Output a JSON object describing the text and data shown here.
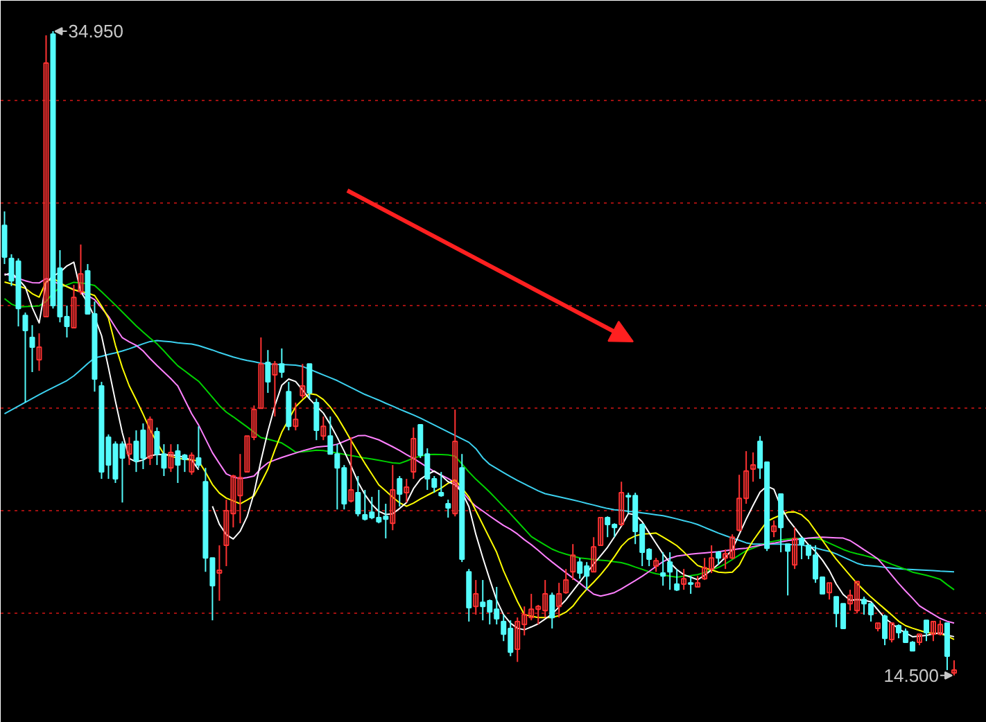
{
  "chart_data": {
    "type": "candlestick",
    "annotations": [
      "34.950",
      "14.500"
    ],
    "categories": [
      null,
      null,
      null,
      null,
      null,
      null,
      null,
      null,
      null,
      null,
      null,
      null,
      null,
      null,
      null,
      null,
      null,
      null,
      null,
      null,
      null,
      null,
      null,
      null,
      null,
      null,
      null,
      null,
      null,
      null,
      null,
      null,
      null,
      null,
      null,
      null,
      null,
      null,
      null,
      null,
      null,
      null,
      null,
      null,
      null,
      null,
      null,
      null,
      null,
      null,
      null,
      null,
      null,
      null,
      null,
      null,
      null,
      null,
      null,
      null,
      null,
      null,
      null,
      null,
      null,
      null,
      null,
      null,
      null,
      null,
      null,
      null,
      null,
      null,
      null,
      null,
      null,
      null,
      null,
      null,
      null,
      null,
      null,
      null,
      null,
      null,
      null,
      null,
      null,
      null,
      null,
      null,
      null,
      null,
      null,
      null,
      null,
      null,
      null,
      null,
      null,
      null,
      null,
      null,
      null,
      null,
      null,
      null,
      null,
      null,
      null,
      null,
      null,
      null,
      null,
      null,
      null,
      null,
      null,
      null,
      null,
      null,
      null,
      null,
      null,
      null,
      null,
      null,
      null,
      null,
      null,
      null,
      null,
      null,
      null,
      null,
      null,
      null
    ],
    "ohlc": [
      [
        28.79,
        29.23,
        27.56,
        27.78
      ],
      [
        27.74,
        27.87,
        26.86,
        27.03
      ],
      [
        27.65,
        27.74,
        25.58,
        26.15
      ],
      [
        25.93,
        26.02,
        23.16,
        25.45
      ],
      [
        25.23,
        25.62,
        24.13,
        24.92
      ],
      [
        24.52,
        25.36,
        24.17,
        24.92
      ],
      [
        25.89,
        34.82,
        25.89,
        33.94
      ],
      [
        34.86,
        34.95,
        26.15,
        26.24
      ],
      [
        27.43,
        28.0,
        25.71,
        25.89
      ],
      [
        25.89,
        26.24,
        25.23,
        25.58
      ],
      [
        25.54,
        26.9,
        25.54,
        26.5
      ],
      [
        26.68,
        28.18,
        26.59,
        27.25
      ],
      [
        27.34,
        27.56,
        25.98,
        25.98
      ],
      [
        25.98,
        26.37,
        23.51,
        23.91
      ],
      [
        23.69,
        23.82,
        20.74,
        20.96
      ],
      [
        22.06,
        22.15,
        20.74,
        21.18
      ],
      [
        21.84,
        21.93,
        20.61,
        20.74
      ],
      [
        21.84,
        21.93,
        19.99,
        21.4
      ],
      [
        21.53,
        22.06,
        21.18,
        21.84
      ],
      [
        21.93,
        22.28,
        20.96,
        21.31
      ],
      [
        22.28,
        22.5,
        21.05,
        21.4
      ],
      [
        21.4,
        22.72,
        21.18,
        22.63
      ],
      [
        22.24,
        22.37,
        21.18,
        21.53
      ],
      [
        21.53,
        21.84,
        20.83,
        21.09
      ],
      [
        21.09,
        21.84,
        20.96,
        21.58
      ],
      [
        21.62,
        21.84,
        20.61,
        21.18
      ],
      [
        21.49,
        21.53,
        20.96,
        21.36
      ],
      [
        20.96,
        21.58,
        20.87,
        21.49
      ],
      [
        21.4,
        22.41,
        21.09,
        21.18
      ],
      [
        20.65,
        21.09,
        17.79,
        18.23
      ],
      [
        18.23,
        18.23,
        16.25,
        17.35
      ],
      [
        17.75,
        18.63,
        16.87,
        17.84
      ],
      [
        18.63,
        20.08,
        17.97,
        19.73
      ],
      [
        19.64,
        20.87,
        19.2,
        20.83
      ],
      [
        20.21,
        21.53,
        19.33,
        20.78
      ],
      [
        20.96,
        22.1,
        20.96,
        22.1
      ],
      [
        22.06,
        23.07,
        21.97,
        22.94
      ],
      [
        22.98,
        25.23,
        22.98,
        24.39
      ],
      [
        24.44,
        24.83,
        23.47,
        23.82
      ],
      [
        24.04,
        24.48,
        22.72,
        24.39
      ],
      [
        24.39,
        24.88,
        23.95,
        24.13
      ],
      [
        23.51,
        23.82,
        22.28,
        22.41
      ],
      [
        22.41,
        23.16,
        22.28,
        22.63
      ],
      [
        23.38,
        24.39,
        23.29,
        23.69
      ],
      [
        24.39,
        24.39,
        23.29,
        23.47
      ],
      [
        23.16,
        23.29,
        21.97,
        22.28
      ],
      [
        22.1,
        22.72,
        21.97,
        22.41
      ],
      [
        22.1,
        22.72,
        21.53,
        21.53
      ],
      [
        21.53,
        21.84,
        19.77,
        21.09
      ],
      [
        21.09,
        21.18,
        19.77,
        19.95
      ],
      [
        20.04,
        22.06,
        19.99,
        20.39
      ],
      [
        20.3,
        20.83,
        19.55,
        19.64
      ],
      [
        19.6,
        20.39,
        19.42,
        19.46
      ],
      [
        19.68,
        20.17,
        19.46,
        19.51
      ],
      [
        19.51,
        20.39,
        19.33,
        19.38
      ],
      [
        19.55,
        19.95,
        18.85,
        19.46
      ],
      [
        19.33,
        21.18,
        19.11,
        20.39
      ],
      [
        20.74,
        20.83,
        19.86,
        20.26
      ],
      [
        20.3,
        20.74,
        19.99,
        20.48
      ],
      [
        20.96,
        22.37,
        20.74,
        22.02
      ],
      [
        22.46,
        22.46,
        21.4,
        21.49
      ],
      [
        21.53,
        21.71,
        20.39,
        20.74
      ],
      [
        20.74,
        20.83,
        20.3,
        20.48
      ],
      [
        20.3,
        20.96,
        20.17,
        20.21
      ],
      [
        19.95,
        20.08,
        19.51,
        19.82
      ],
      [
        19.64,
        22.94,
        19.55,
        21.93
      ],
      [
        21.09,
        21.53,
        18.1,
        18.19
      ],
      [
        17.79,
        17.88,
        16.21,
        16.65
      ],
      [
        16.69,
        17.53,
        16.43,
        17.09
      ],
      [
        16.82,
        17.53,
        16.25,
        16.69
      ],
      [
        16.87,
        16.91,
        16.12,
        16.52
      ],
      [
        16.6,
        17.31,
        16.12,
        16.3
      ],
      [
        16.21,
        16.43,
        15.59,
        15.81
      ],
      [
        15.99,
        16.25,
        15.11,
        15.24
      ],
      [
        15.33,
        16.34,
        14.93,
        16.21
      ],
      [
        16.12,
        16.69,
        15.77,
        16.43
      ],
      [
        16.34,
        17.09,
        16.25,
        16.6
      ],
      [
        16.6,
        16.74,
        16.12,
        16.69
      ],
      [
        16.56,
        17.53,
        16.34,
        17.09
      ],
      [
        17.04,
        17.13,
        15.99,
        16.34
      ],
      [
        16.69,
        17.44,
        16.34,
        17.09
      ],
      [
        17.13,
        17.88,
        17.09,
        17.53
      ],
      [
        17.79,
        18.67,
        17.53,
        18.32
      ],
      [
        18.1,
        18.23,
        17.57,
        17.75
      ],
      [
        17.97,
        18.1,
        17.22,
        17.66
      ],
      [
        17.79,
        18.89,
        17.79,
        18.58
      ],
      [
        18.63,
        19.51,
        18.63,
        19.51
      ],
      [
        19.51,
        19.55,
        18.89,
        19.29
      ],
      [
        19.29,
        19.33,
        18.89,
        19.2
      ],
      [
        19.29,
        20.65,
        19.24,
        20.3
      ],
      [
        20.21,
        20.3,
        19.64,
        20.17
      ],
      [
        20.21,
        20.3,
        18.67,
        19.07
      ],
      [
        19.29,
        19.33,
        17.97,
        18.41
      ],
      [
        18.5,
        18.54,
        17.97,
        18.19
      ],
      [
        17.97,
        18.23,
        17.79,
        18.14
      ],
      [
        17.75,
        18.41,
        17.35,
        17.66
      ],
      [
        18.1,
        18.41,
        17.22,
        17.79
      ],
      [
        17.4,
        17.88,
        17.18,
        17.22
      ],
      [
        17.4,
        17.88,
        17.22,
        17.57
      ],
      [
        17.44,
        17.66,
        17.09,
        17.4
      ],
      [
        17.31,
        17.66,
        17.31,
        17.44
      ],
      [
        17.57,
        18.23,
        17.53,
        17.92
      ],
      [
        17.88,
        18.63,
        17.75,
        18.23
      ],
      [
        18.41,
        18.45,
        18.01,
        18.23
      ],
      [
        18.23,
        18.5,
        17.88,
        18.36
      ],
      [
        18.23,
        18.98,
        18.19,
        18.89
      ],
      [
        19.11,
        20.87,
        19.07,
        20.12
      ],
      [
        20.12,
        21.62,
        19.95,
        20.99
      ],
      [
        21.05,
        21.58,
        20.65,
        21.18
      ],
      [
        21.93,
        22.1,
        20.74,
        21.09
      ],
      [
        21.27,
        21.27,
        18.45,
        18.54
      ],
      [
        19.07,
        19.42,
        18.89,
        19.24
      ],
      [
        20.26,
        20.26,
        18.41,
        19.2
      ],
      [
        18.67,
        18.67,
        17.04,
        18.45
      ],
      [
        18.01,
        19.2,
        17.88,
        18.85
      ],
      [
        18.85,
        18.89,
        18.19,
        18.67
      ],
      [
        18.63,
        18.63,
        18.19,
        18.32
      ],
      [
        18.32,
        18.63,
        17.44,
        17.57
      ],
      [
        17.62,
        17.62,
        17.09,
        17.09
      ],
      [
        17.13,
        17.44,
        16.91,
        17.44
      ],
      [
        17.0,
        17.0,
        16.03,
        16.47
      ],
      [
        16.78,
        16.78,
        15.99,
        15.99
      ],
      [
        16.78,
        17.22,
        16.56,
        17.04
      ],
      [
        16.56,
        17.48,
        16.47,
        17.48
      ],
      [
        16.91,
        17.0,
        16.43,
        16.78
      ],
      [
        16.78,
        16.78,
        16.21,
        16.43
      ],
      [
        15.99,
        16.16,
        15.9,
        16.16
      ],
      [
        16.38,
        16.43,
        15.46,
        15.68
      ],
      [
        15.64,
        16.16,
        15.55,
        16.16
      ],
      [
        16.08,
        16.12,
        15.68,
        15.86
      ],
      [
        15.9,
        15.99,
        15.55,
        15.55
      ],
      [
        15.55,
        15.59,
        15.28,
        15.28
      ],
      [
        15.55,
        15.81,
        15.46,
        15.81
      ],
      [
        16.25,
        16.25,
        15.59,
        15.86
      ],
      [
        15.81,
        16.21,
        15.59,
        16.21
      ],
      [
        15.81,
        16.25,
        15.77,
        16.12
      ],
      [
        16.16,
        16.16,
        14.67,
        15.11
      ],
      [
        14.58,
        14.98,
        14.5,
        14.67
      ]
    ],
    "colors": [
      "#54fcfc",
      "#54fcfc",
      "#54fcfc",
      "#54fcfc",
      "#54fcfc",
      "#ff3232",
      "#ff3232",
      "#54fcfc",
      "#54fcfc",
      "#54fcfc",
      "#ff3232",
      "#ff3232",
      "#54fcfc",
      "#54fcfc",
      "#54fcfc",
      "#54fcfc",
      "#54fcfc",
      "#54fcfc",
      "#ff3232",
      "#54fcfc",
      "#54fcfc",
      "#ff3232",
      "#54fcfc",
      "#54fcfc",
      "#ff3232",
      "#54fcfc",
      "#54fcfc",
      "#ff3232",
      "#54fcfc",
      "#54fcfc",
      "#54fcfc",
      "#ff3232",
      "#ff3232",
      "#ff3232",
      "#ff3232",
      "#ff3232",
      "#ff3232",
      "#ff3232",
      "#54fcfc",
      "#ff3232",
      "#54fcfc",
      "#54fcfc",
      "#ff3232",
      "#ff3232",
      "#54fcfc",
      "#54fcfc",
      "#ff3232",
      "#54fcfc",
      "#54fcfc",
      "#54fcfc",
      "#ff3232",
      "#54fcfc",
      "#54fcfc",
      "#54fcfc",
      "#54fcfc",
      "#54fcfc",
      "#ff3232",
      "#54fcfc",
      "#ff3232",
      "#ff3232",
      "#54fcfc",
      "#54fcfc",
      "#54fcfc",
      "#54fcfc",
      "#54fcfc",
      "#ff3232",
      "#54fcfc",
      "#54fcfc",
      "#ff3232",
      "#54fcfc",
      "#54fcfc",
      "#54fcfc",
      "#54fcfc",
      "#54fcfc",
      "#ff3232",
      "#ff3232",
      "#ff3232",
      "#ff3232",
      "#ff3232",
      "#54fcfc",
      "#ff3232",
      "#ff3232",
      "#ff3232",
      "#54fcfc",
      "#54fcfc",
      "#ff3232",
      "#ff3232",
      "#54fcfc",
      "#54fcfc",
      "#ff3232",
      "#54fcfc",
      "#54fcfc",
      "#54fcfc",
      "#54fcfc",
      "#ff3232",
      "#54fcfc",
      "#54fcfc",
      "#54fcfc",
      "#ff3232",
      "#54fcfc",
      "#ff3232",
      "#ff3232",
      "#ff3232",
      "#54fcfc",
      "#ff3232",
      "#ff3232",
      "#ff3232",
      "#ff3232",
      "#ff3232",
      "#54fcfc",
      "#54fcfc",
      "#ff3232",
      "#54fcfc",
      "#54fcfc",
      "#ff3232",
      "#54fcfc",
      "#54fcfc",
      "#54fcfc",
      "#54fcfc",
      "#ff3232",
      "#54fcfc",
      "#54fcfc",
      "#ff3232",
      "#ff3232",
      "#54fcfc",
      "#54fcfc",
      "#ff3232",
      "#54fcfc",
      "#ff3232",
      "#54fcfc",
      "#54fcfc",
      "#54fcfc",
      "#ff3232",
      "#54fcfc",
      "#ff3232",
      "#ff3232",
      "#54fcfc",
      "#ff3232"
    ],
    "series": [
      {
        "type": "line",
        "color": "#3cd2f0",
        "values": [
          22.81,
          22.93,
          23.05,
          23.17,
          23.29,
          23.41,
          23.53,
          23.64,
          23.75,
          23.86,
          24.01,
          24.2,
          24.4,
          24.58,
          24.63,
          24.69,
          24.74,
          24.8,
          24.87,
          24.95,
          25.03,
          25.1,
          25.13,
          25.11,
          25.09,
          25.06,
          25.04,
          25.02,
          24.97,
          24.9,
          24.83,
          24.75,
          24.68,
          24.61,
          24.55,
          24.5,
          24.46,
          24.41,
          24.39,
          24.38,
          24.37,
          24.36,
          24.35,
          24.31,
          24.22,
          24.13,
          24.04,
          23.95,
          23.86,
          23.75,
          23.64,
          23.53,
          23.42,
          23.33,
          23.24,
          23.14,
          23.05,
          22.95,
          22.86,
          22.77,
          22.67,
          22.56,
          22.45,
          22.34,
          22.23,
          22.12,
          22.01,
          21.9,
          21.7,
          21.41,
          21.2,
          21.07,
          20.94,
          20.81,
          20.69,
          20.58,
          20.47,
          20.36,
          20.27,
          20.22,
          20.17,
          20.12,
          20.07,
          20.02,
          19.96,
          19.91,
          19.85,
          19.8,
          19.76,
          19.74,
          19.71,
          19.69,
          19.66,
          19.63,
          19.6,
          19.57,
          19.52,
          19.47,
          19.41,
          19.36,
          19.29,
          19.2,
          19.11,
          19.02,
          18.94,
          18.86,
          18.79,
          18.71,
          18.67,
          18.67,
          18.67,
          18.67,
          18.67,
          18.66,
          18.65,
          18.64,
          18.6,
          18.55,
          18.49,
          18.44,
          18.36,
          18.26,
          18.16,
          18.06,
          18.0,
          17.98,
          17.96,
          17.93,
          17.91,
          17.89,
          17.87,
          17.86,
          17.85,
          17.84,
          17.83,
          17.81,
          17.8,
          17.79
        ]
      },
      {
        "type": "line",
        "color": "#00d200",
        "values": [
          26.46,
          26.29,
          26.2,
          26.21,
          26.22,
          26.23,
          26.37,
          26.64,
          26.81,
          26.9,
          26.98,
          26.96,
          26.93,
          26.88,
          26.68,
          26.47,
          26.26,
          26.04,
          25.82,
          25.6,
          25.4,
          25.21,
          25.03,
          24.8,
          24.56,
          24.33,
          24.17,
          24.0,
          23.84,
          23.59,
          23.33,
          23.07,
          22.86,
          22.71,
          22.55,
          22.39,
          22.22,
          22.05,
          22.0,
          21.94,
          21.88,
          21.74,
          21.59,
          21.6,
          21.62,
          21.65,
          21.64,
          21.6,
          21.56,
          21.52,
          21.48,
          21.44,
          21.4,
          21.37,
          21.33,
          21.29,
          21.25,
          21.23,
          21.31,
          21.4,
          21.46,
          21.51,
          21.52,
          21.51,
          21.5,
          21.46,
          21.21,
          20.96,
          20.73,
          20.53,
          20.32,
          20.09,
          19.86,
          19.63,
          19.39,
          19.15,
          18.91,
          18.77,
          18.64,
          18.51,
          18.42,
          18.35,
          18.29,
          18.23,
          18.21,
          18.18,
          18.16,
          18.14,
          18.11,
          18.08,
          18.02,
          17.94,
          17.87,
          17.79,
          17.73,
          17.69,
          17.65,
          17.62,
          17.65,
          17.67,
          17.7,
          17.77,
          17.85,
          17.93,
          18.04,
          18.18,
          18.32,
          18.46,
          18.54,
          18.63,
          18.72,
          18.76,
          18.8,
          18.83,
          18.85,
          18.85,
          18.85,
          18.85,
          18.8,
          18.7,
          18.6,
          18.5,
          18.42,
          18.36,
          18.31,
          18.25,
          18.2,
          18.12,
          18.03,
          17.95,
          17.87,
          17.78,
          17.73,
          17.68,
          17.62,
          17.55,
          17.38,
          17.22
        ]
      },
      {
        "type": "line",
        "color": "#ff80ff",
        "values": [
          27.25,
          27.18,
          27.1,
          27.03,
          26.97,
          26.96,
          27.1,
          27.02,
          26.91,
          26.85,
          26.75,
          26.67,
          26.56,
          26.43,
          26.17,
          25.9,
          25.55,
          25.22,
          25.09,
          24.98,
          24.8,
          24.56,
          24.34,
          24.13,
          23.92,
          23.69,
          23.25,
          22.81,
          22.45,
          22.01,
          21.57,
          21.23,
          20.9,
          20.8,
          20.75,
          20.78,
          20.83,
          21.07,
          21.25,
          21.34,
          21.42,
          21.49,
          21.56,
          21.63,
          21.69,
          21.75,
          21.77,
          21.79,
          21.84,
          21.93,
          22.02,
          22.11,
          22.12,
          22.05,
          21.98,
          21.87,
          21.76,
          21.64,
          21.51,
          21.39,
          21.25,
          21.11,
          20.97,
          20.86,
          20.75,
          20.62,
          20.35,
          20.08,
          19.87,
          19.72,
          19.56,
          19.41,
          19.26,
          19.14,
          18.99,
          18.81,
          18.65,
          18.47,
          18.28,
          18.1,
          17.93,
          17.76,
          17.59,
          17.43,
          17.25,
          17.08,
          17.02,
          17.07,
          17.13,
          17.25,
          17.38,
          17.51,
          17.65,
          17.8,
          17.96,
          18.11,
          18.22,
          18.29,
          18.32,
          18.35,
          18.37,
          18.39,
          18.41,
          18.43,
          18.46,
          18.49,
          18.52,
          18.54,
          18.59,
          18.63,
          18.67,
          18.7,
          18.74,
          18.78,
          18.81,
          18.83,
          18.86,
          18.88,
          18.89,
          18.88,
          18.87,
          18.86,
          18.78,
          18.64,
          18.49,
          18.35,
          18.2,
          17.95,
          17.68,
          17.42,
          17.18,
          16.95,
          16.71,
          16.57,
          16.44,
          16.31,
          16.22,
          16.16
        ]
      },
      {
        "type": "line",
        "color": "#ffff00",
        "values": [
          26.99,
          26.93,
          26.87,
          26.79,
          26.62,
          26.51,
          27.0,
          27.11,
          26.97,
          26.84,
          26.74,
          26.69,
          26.64,
          26.56,
          26.23,
          25.84,
          24.98,
          24.27,
          23.69,
          23.25,
          22.79,
          22.3,
          21.89,
          21.52,
          21.46,
          21.4,
          21.36,
          21.34,
          21.31,
          20.95,
          20.56,
          20.29,
          20.13,
          20.04,
          19.95,
          20.07,
          20.2,
          20.61,
          21.05,
          21.66,
          22.22,
          22.63,
          23.03,
          23.25,
          23.45,
          23.41,
          23.26,
          23.02,
          22.71,
          22.34,
          21.96,
          21.59,
          21.23,
          20.89,
          20.55,
          20.36,
          20.16,
          19.98,
          19.87,
          19.97,
          20.1,
          20.22,
          20.33,
          20.45,
          20.6,
          20.71,
          20.45,
          20.17,
          19.73,
          19.29,
          18.85,
          18.41,
          17.82,
          17.33,
          16.85,
          16.43,
          16.38,
          16.34,
          16.34,
          16.34,
          16.4,
          16.51,
          16.7,
          16.99,
          17.24,
          17.46,
          17.7,
          17.97,
          18.27,
          18.6,
          18.82,
          18.93,
          18.99,
          19.0,
          19.02,
          18.89,
          18.76,
          18.62,
          18.42,
          18.2,
          17.99,
          17.91,
          17.85,
          17.78,
          17.76,
          17.78,
          18.0,
          18.42,
          18.78,
          19.09,
          19.39,
          19.5,
          19.59,
          19.68,
          19.69,
          19.6,
          19.4,
          19.09,
          18.79,
          18.48,
          18.19,
          17.93,
          17.67,
          17.42,
          17.2,
          16.99,
          16.8,
          16.61,
          16.42,
          16.22,
          16.08,
          16.0,
          15.93,
          15.86,
          15.84,
          15.83,
          15.75,
          15.64
        ]
      },
      {
        "type": "line",
        "color": "#ffffff",
        "values": [
          27.21,
          27.28,
          27.08,
          26.83,
          26.18,
          25.69,
          26.97,
          27.18,
          27.3,
          27.5,
          27.62,
          26.68,
          26.33,
          25.87,
          25.29,
          24.27,
          23.21,
          22.2,
          21.39,
          21.28,
          21.34,
          21.47,
          21.52,
          21.51,
          21.5,
          21.48,
          21.41,
          21.34,
          21.03,
          null,
          19.87,
          19.3,
          18.97,
          18.83,
          19.08,
          19.54,
          20.29,
          21.32,
          22.25,
          23.06,
          23.71,
          23.91,
          23.83,
          23.56,
          23.28,
          23.05,
          22.83,
          22.47,
          22.06,
          21.62,
          21.15,
          20.64,
          20.24,
          19.93,
          19.71,
          19.61,
          19.63,
          19.8,
          19.99,
          20.43,
          20.73,
          20.88,
          20.99,
          20.85,
          20.65,
          20.55,
          20.32,
          19.86,
          18.98,
          18.24,
          17.55,
          16.89,
          16.43,
          16.16,
          16.0,
          15.95,
          16.04,
          16.14,
          16.29,
          16.45,
          16.67,
          16.9,
          17.18,
          17.47,
          17.75,
          18.04,
          18.3,
          18.57,
          18.9,
          19.24,
          19.64,
          19.6,
          19.38,
          19.03,
          18.69,
          18.36,
          18.08,
          17.86,
          17.7,
          17.62,
          17.54,
          17.68,
          17.85,
          18.03,
          18.25,
          18.5,
          18.98,
          19.46,
          19.9,
          20.32,
          20.51,
          20.41,
          19.86,
          19.47,
          19.19,
          18.9,
          18.65,
          18.43,
          18.16,
          17.83,
          17.4,
          17.07,
          16.88,
          16.91,
          16.89,
          16.84,
          16.58,
          16.32,
          16.15,
          15.98,
          15.85,
          15.73,
          15.75,
          15.77,
          15.82,
          15.85,
          15.78,
          15.73
        ]
      }
    ],
    "ylim": [
      13.0,
      35.92
    ],
    "yticks": [
      {
        "value": 32.74,
        "label": null
      },
      {
        "value": 29.48,
        "label": null
      },
      {
        "value": 26.23,
        "label": null
      },
      {
        "value": 22.97,
        "label": null
      },
      {
        "value": 19.71,
        "label": null
      },
      {
        "value": 16.46,
        "label": null
      }
    ],
    "grid": "y",
    "tick_labels": false
  }
}
